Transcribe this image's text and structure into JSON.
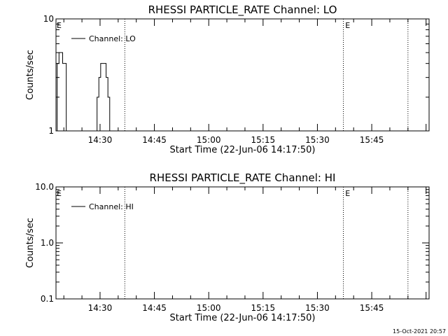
{
  "footer": {
    "timestamp": "15-Oct-2021 20:57"
  },
  "chart_data": [
    {
      "type": "line",
      "title": "RHESSI PARTICLE_RATE Channel: LO",
      "xlabel": "Start Time (22-Jun-06 14:17:50)",
      "ylabel": "Counts/sec",
      "yscale": "log",
      "ylim": [
        1,
        10
      ],
      "xlim_minutes_after_start": [
        0,
        103
      ],
      "yticks": [
        1,
        10
      ],
      "ytick_labels": [
        "1",
        "10"
      ],
      "xticks": [
        "14:30",
        "14:45",
        "15:00",
        "15:15",
        "15:30",
        "15:45"
      ],
      "legend": {
        "placement": "top-left",
        "entries": [
          "Channel: LO"
        ]
      },
      "event_markers": [
        {
          "time": "14:17:50",
          "label": "E"
        },
        {
          "time": "15:37:30",
          "label": "E"
        }
      ],
      "dotted_lines": [
        "14:36:50",
        "15:37:10",
        "15:55:00"
      ],
      "series": [
        {
          "name": "Channel: LO",
          "x": [
            "14:17:50",
            "14:18:10",
            "14:18:40",
            "14:19:10",
            "14:19:40",
            "14:20:10",
            "14:20:40",
            "14:28:40",
            "14:29:10",
            "14:29:40",
            "14:30:10",
            "14:30:40",
            "14:31:10",
            "14:31:40",
            "14:32:10",
            "14:32:40",
            "14:33:10"
          ],
          "values": [
            1,
            4,
            5,
            5,
            4,
            4,
            1,
            1,
            2,
            3,
            4,
            4,
            4,
            3,
            2,
            1,
            1
          ]
        }
      ]
    },
    {
      "type": "line",
      "title": "RHESSI PARTICLE_RATE Channel: HI",
      "xlabel": "Start Time (22-Jun-06 14:17:50)",
      "ylabel": "Counts/sec",
      "yscale": "log",
      "ylim": [
        0.1,
        10
      ],
      "xlim_minutes_after_start": [
        0,
        103
      ],
      "yticks": [
        0.1,
        1,
        10
      ],
      "ytick_labels": [
        "0.1",
        "1.0",
        "10.0"
      ],
      "xticks": [
        "14:30",
        "14:45",
        "15:00",
        "15:15",
        "15:30",
        "15:45"
      ],
      "legend": {
        "placement": "top-left",
        "entries": [
          "Channel: HI"
        ]
      },
      "event_markers": [
        {
          "time": "14:17:50",
          "label": "E"
        },
        {
          "time": "15:37:30",
          "label": "E"
        }
      ],
      "dotted_lines": [
        "14:36:50",
        "15:37:10",
        "15:55:00"
      ],
      "series": [
        {
          "name": "Channel: HI",
          "x": [],
          "values": []
        }
      ]
    }
  ]
}
